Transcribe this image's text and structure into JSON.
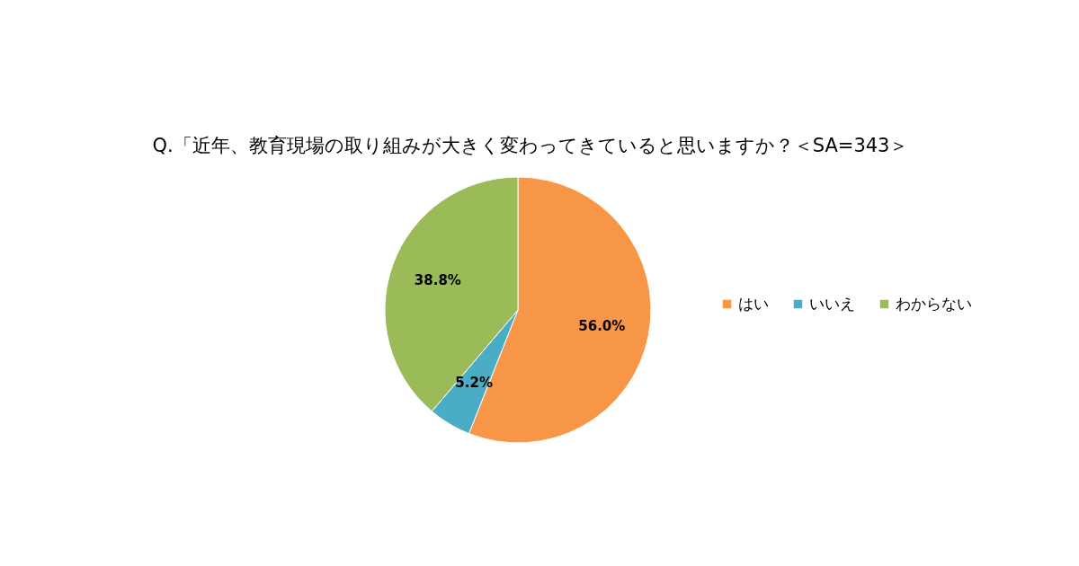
{
  "chart_data": {
    "type": "pie",
    "title": "Q.「近年、教育現場の取り組みが大きく変わってきていると思いますか？＜SA=343＞",
    "categories": [
      "はい",
      "いいえ",
      "わからない"
    ],
    "values": [
      56.0,
      5.2,
      38.8
    ],
    "colors": [
      "#f79646",
      "#4bacc6",
      "#9bbb59"
    ],
    "value_labels": [
      "56.0%",
      "5.2%",
      "38.8%"
    ],
    "legend": "right"
  }
}
